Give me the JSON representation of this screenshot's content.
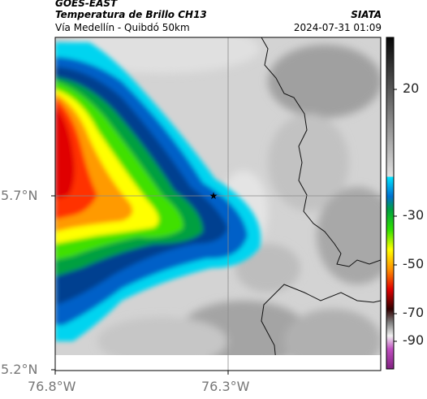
{
  "header": {
    "title": "GOES-EAST",
    "subtitle": "Temperatura de Brillo CH13",
    "location": "Vía Medellín - Quibdó 50km",
    "org": "SIATA",
    "datetime": "2024-07-31 01:09"
  },
  "axes": {
    "lat_ticks": [
      "5.7°N",
      "5.2°N"
    ],
    "lon_ticks": [
      "76.8°W",
      "76.3°W"
    ]
  },
  "colorbar": {
    "ticks": [
      "20",
      "-30",
      "-50",
      "-70",
      "-90"
    ]
  },
  "marker": {
    "icon": "star-icon"
  },
  "colors": {
    "frame": "#000000",
    "gridline": "#8a8a8a",
    "label_gray": "#777777"
  }
}
